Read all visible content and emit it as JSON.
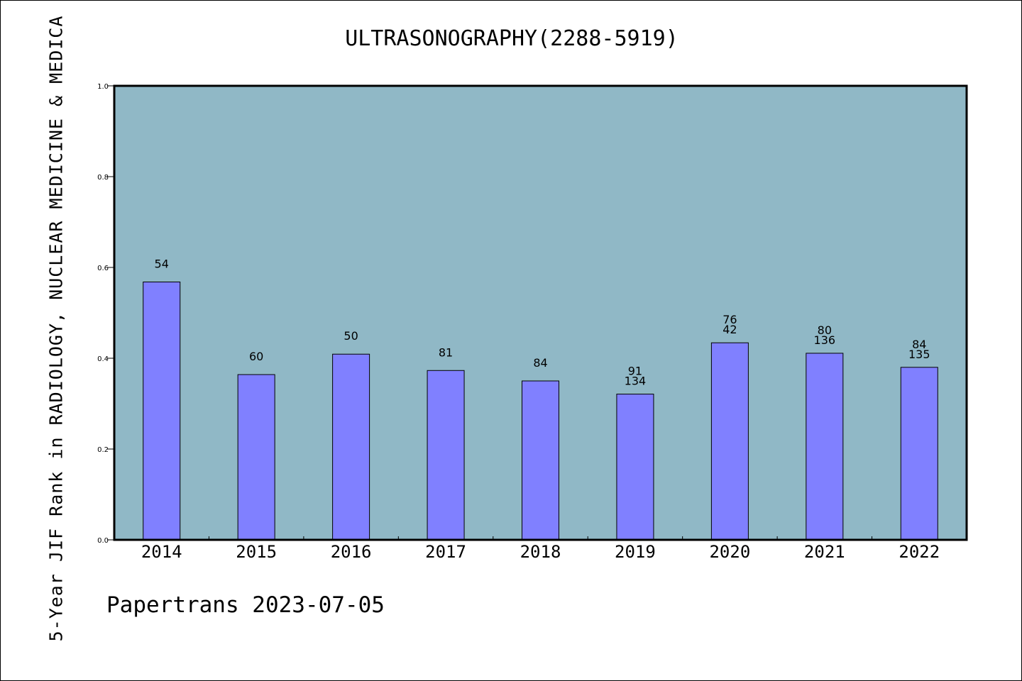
{
  "chart_data": {
    "type": "bar",
    "title": "ULTRASONOGRAPHY(2288-5919)",
    "xlabel": "",
    "ylabel": "5-Year JIF Rank in RADIOLOGY, NUCLEAR MEDICINE & MEDICA",
    "ylim": [
      0,
      1.0
    ],
    "yticks": [
      "0.0",
      "0.2",
      "0.4",
      "0.6",
      "0.8",
      "1.0"
    ],
    "grid": false,
    "categories": [
      "2014",
      "2015",
      "2016",
      "2017",
      "2018",
      "2019",
      "2020",
      "2021",
      "2022"
    ],
    "values": [
      0.568,
      0.364,
      0.409,
      0.373,
      0.35,
      0.321,
      0.434,
      0.411,
      0.38
    ],
    "labels": [
      [
        "54"
      ],
      [
        "60"
      ],
      [
        "50"
      ],
      [
        "81"
      ],
      [
        "84"
      ],
      [
        "91",
        "134"
      ],
      [
        "76",
        "42"
      ],
      [
        "80",
        "136"
      ],
      [
        "84",
        "135"
      ]
    ],
    "colors": {
      "plot_background": "#90b8c6",
      "bar_fill": "#8080ff",
      "bar_stroke": "#000000"
    }
  },
  "footer": "Papertrans 2023-07-05"
}
